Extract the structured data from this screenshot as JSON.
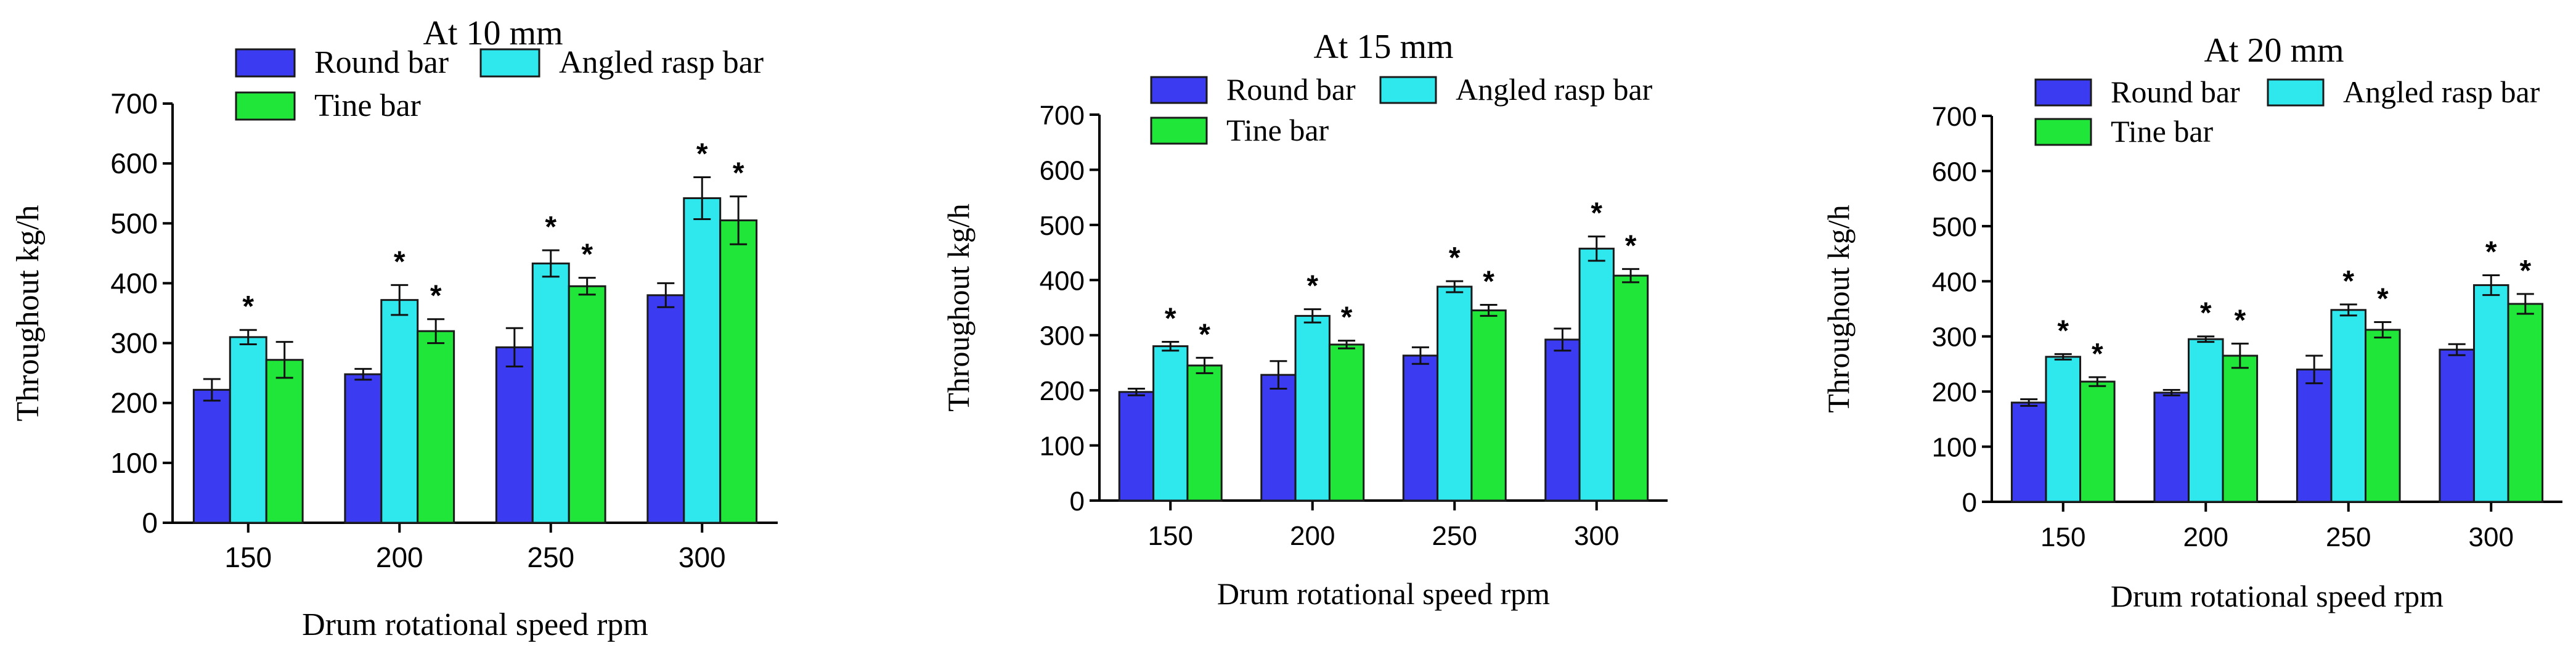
{
  "colors": {
    "round_bar": "#3b3bf2",
    "angled_rasp_bar": "#2ee8ee",
    "tine_bar": "#21e63a",
    "bar_edge": "#1a1a1a"
  },
  "chart_data": [
    {
      "type": "bar",
      "title": "At 10 mm",
      "xlabel": "Drum rotational speed rpm",
      "ylabel": "Throughout kg/h",
      "ylim": [
        0,
        700
      ],
      "yticks": [
        "0",
        "100",
        "200",
        "300",
        "400",
        "500",
        "600",
        "700"
      ],
      "categories": [
        "150",
        "200",
        "250",
        "300"
      ],
      "legend": "top",
      "grid": false,
      "series": [
        {
          "name": "Round bar",
          "color_key": "round_bar",
          "values": [
            222,
            248,
            293,
            380
          ],
          "errors": [
            18,
            9,
            32,
            20
          ],
          "significant": [
            false,
            false,
            false,
            false
          ]
        },
        {
          "name": "Angled rasp bar",
          "color_key": "angled_rasp_bar",
          "values": [
            310,
            372,
            433,
            542
          ],
          "errors": [
            12,
            25,
            22,
            35
          ],
          "significant": [
            true,
            true,
            true,
            true
          ]
        },
        {
          "name": "Tine bar",
          "color_key": "tine_bar",
          "values": [
            272,
            320,
            395,
            505
          ],
          "errors": [
            30,
            20,
            14,
            40
          ],
          "significant": [
            false,
            true,
            true,
            true
          ]
        }
      ],
      "significance_mark": "*"
    },
    {
      "type": "bar",
      "title": "At 15 mm",
      "xlabel": "Drum rotational speed rpm",
      "ylabel": "Throughout kg/h",
      "ylim": [
        0,
        700
      ],
      "yticks": [
        "0",
        "100",
        "200",
        "300",
        "400",
        "500",
        "600",
        "700"
      ],
      "categories": [
        "150",
        "200",
        "250",
        "300"
      ],
      "legend": "top",
      "grid": false,
      "series": [
        {
          "name": "Round bar",
          "color_key": "round_bar",
          "values": [
            197,
            228,
            263,
            292
          ],
          "errors": [
            6,
            25,
            15,
            20
          ],
          "significant": [
            false,
            false,
            false,
            false
          ]
        },
        {
          "name": "Angled rasp bar",
          "color_key": "angled_rasp_bar",
          "values": [
            280,
            335,
            388,
            457
          ],
          "errors": [
            8,
            12,
            10,
            22
          ],
          "significant": [
            true,
            true,
            true,
            true
          ]
        },
        {
          "name": "Tine bar",
          "color_key": "tine_bar",
          "values": [
            245,
            283,
            345,
            408
          ],
          "errors": [
            14,
            7,
            10,
            12
          ],
          "significant": [
            true,
            true,
            true,
            true
          ]
        }
      ],
      "significance_mark": "*"
    },
    {
      "type": "bar",
      "title": "At 20 mm",
      "xlabel": "Drum rotational speed rpm",
      "ylabel": "Throughout kg/h",
      "ylim": [
        0,
        700
      ],
      "yticks": [
        "0",
        "100",
        "200",
        "300",
        "400",
        "500",
        "600",
        "700"
      ],
      "categories": [
        "150",
        "200",
        "250",
        "300"
      ],
      "legend": "top",
      "grid": false,
      "series": [
        {
          "name": "Round bar",
          "color_key": "round_bar",
          "values": [
            180,
            198,
            240,
            276
          ],
          "errors": [
            6,
            5,
            25,
            10
          ],
          "significant": [
            false,
            false,
            false,
            false
          ]
        },
        {
          "name": "Angled rasp bar",
          "color_key": "angled_rasp_bar",
          "values": [
            263,
            295,
            348,
            393
          ],
          "errors": [
            5,
            5,
            10,
            18
          ],
          "significant": [
            true,
            true,
            true,
            true
          ]
        },
        {
          "name": "Tine bar",
          "color_key": "tine_bar",
          "values": [
            218,
            265,
            312,
            359
          ],
          "errors": [
            8,
            22,
            14,
            18
          ],
          "significant": [
            true,
            true,
            true,
            true
          ]
        }
      ],
      "significance_mark": "*"
    }
  ]
}
